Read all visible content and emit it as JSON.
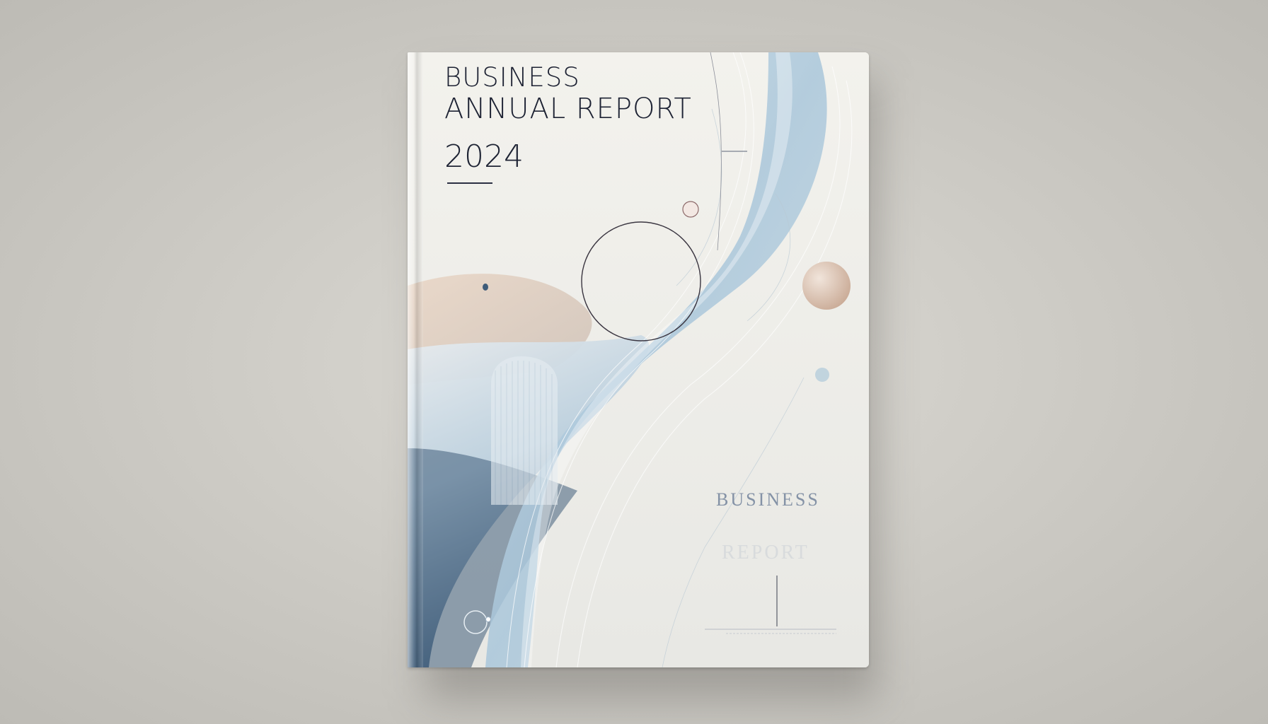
{
  "cover": {
    "title_line1": "BUSINESS",
    "title_line2": "ANNUAL REPORT",
    "year": "2024",
    "subtitle_line1": "BUSINESS",
    "subtitle_line2": "REPORT"
  },
  "colors": {
    "background": "#cbc9c3",
    "cover_light": "#f1f0eb",
    "accent_blue": "#8fb1c9",
    "deep_blue": "#3e5c79",
    "accent_peach": "#dcc4b2",
    "text_dark": "#1d2233"
  }
}
